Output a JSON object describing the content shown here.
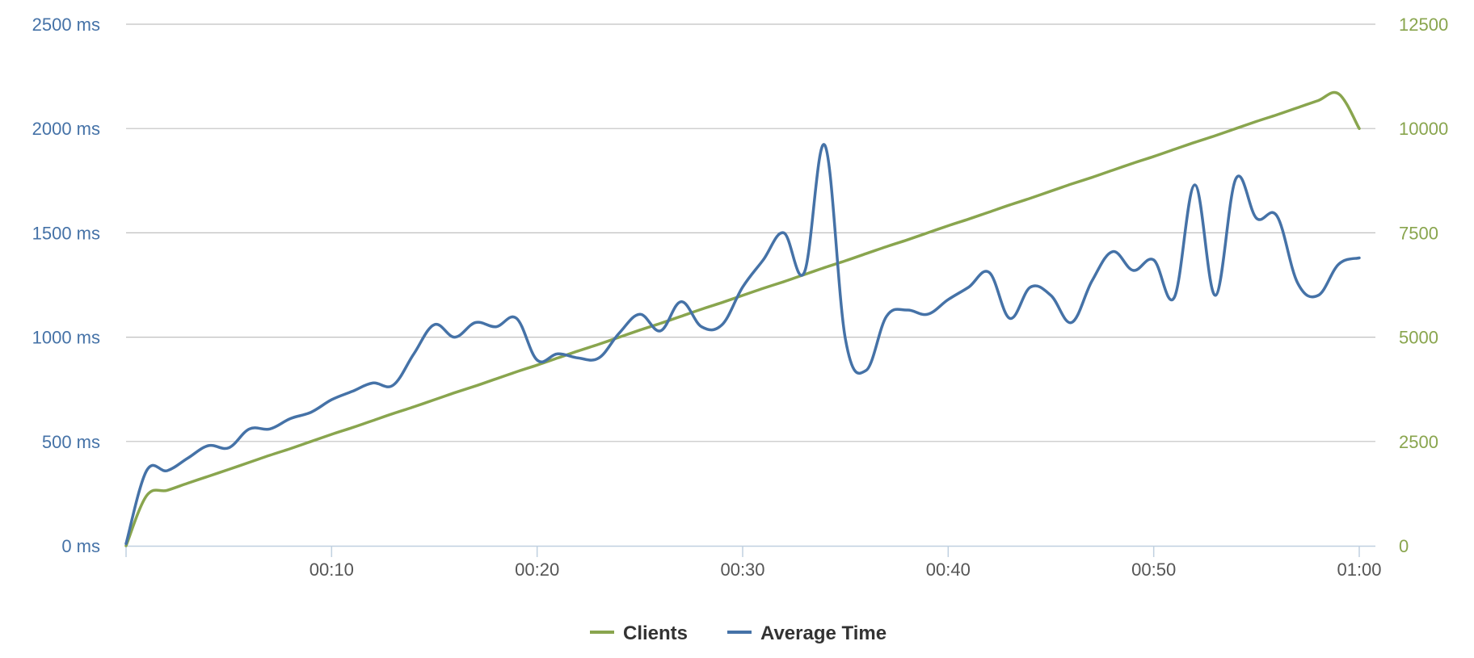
{
  "chart_data": {
    "type": "line",
    "title": "",
    "x": [
      "00:00",
      "00:01",
      "00:02",
      "00:03",
      "00:04",
      "00:05",
      "00:06",
      "00:07",
      "00:08",
      "00:09",
      "00:10",
      "00:11",
      "00:12",
      "00:13",
      "00:14",
      "00:15",
      "00:16",
      "00:17",
      "00:18",
      "00:19",
      "00:20",
      "00:21",
      "00:22",
      "00:23",
      "00:24",
      "00:25",
      "00:26",
      "00:27",
      "00:28",
      "00:29",
      "00:30",
      "00:31",
      "00:32",
      "00:33",
      "00:34",
      "00:35",
      "00:36",
      "00:37",
      "00:38",
      "00:39",
      "00:40",
      "00:41",
      "00:42",
      "00:43",
      "00:44",
      "00:45",
      "00:46",
      "00:47",
      "00:48",
      "00:49",
      "00:50",
      "00:51",
      "00:52",
      "00:53",
      "00:54",
      "00:55",
      "00:56",
      "00:57",
      "00:58",
      "00:59",
      "01:00"
    ],
    "x_tick_labels": [
      "00:10",
      "00:20",
      "00:30",
      "00:40",
      "00:50",
      "01:00"
    ],
    "y_left": {
      "tick_labels": [
        "0 ms",
        "500 ms",
        "1000 ms",
        "1500 ms",
        "2000 ms",
        "2500 ms"
      ],
      "range": [
        0,
        2500
      ],
      "color": "#4572a7"
    },
    "y_right": {
      "tick_labels": [
        "0",
        "2500",
        "5000",
        "7500",
        "10000",
        "12500"
      ],
      "range": [
        0,
        12500
      ],
      "color": "#89a54e"
    },
    "grid": true,
    "legend_position": "bottom-center",
    "series": [
      {
        "name": "Clients",
        "axis": "right",
        "color": "#89a54e",
        "values": [
          0,
          1200,
          1330,
          1500,
          1665,
          1830,
          2000,
          2170,
          2330,
          2500,
          2670,
          2830,
          3000,
          3170,
          3330,
          3500,
          3670,
          3830,
          4000,
          4170,
          4330,
          4500,
          4670,
          4830,
          5000,
          5170,
          5330,
          5500,
          5670,
          5830,
          6000,
          6170,
          6330,
          6500,
          6670,
          6830,
          7000,
          7170,
          7330,
          7500,
          7670,
          7830,
          8000,
          8170,
          8330,
          8500,
          8670,
          8830,
          9000,
          9170,
          9330,
          9500,
          9670,
          9830,
          10000,
          10170,
          10330,
          10500,
          10670,
          10830,
          10000
        ]
      },
      {
        "name": "Average Time",
        "axis": "left",
        "color": "#4572a7",
        "values": [
          10,
          360,
          360,
          420,
          480,
          470,
          560,
          560,
          610,
          640,
          700,
          740,
          780,
          770,
          920,
          1060,
          1000,
          1070,
          1050,
          1090,
          890,
          920,
          900,
          900,
          1020,
          1110,
          1030,
          1170,
          1050,
          1060,
          1240,
          1370,
          1500,
          1310,
          1920,
          990,
          840,
          1100,
          1130,
          1110,
          1180,
          1240,
          1310,
          1090,
          1240,
          1200,
          1070,
          1270,
          1410,
          1320,
          1370,
          1190,
          1730,
          1200,
          1760,
          1570,
          1580,
          1260,
          1200,
          1350,
          1380
        ]
      }
    ]
  }
}
